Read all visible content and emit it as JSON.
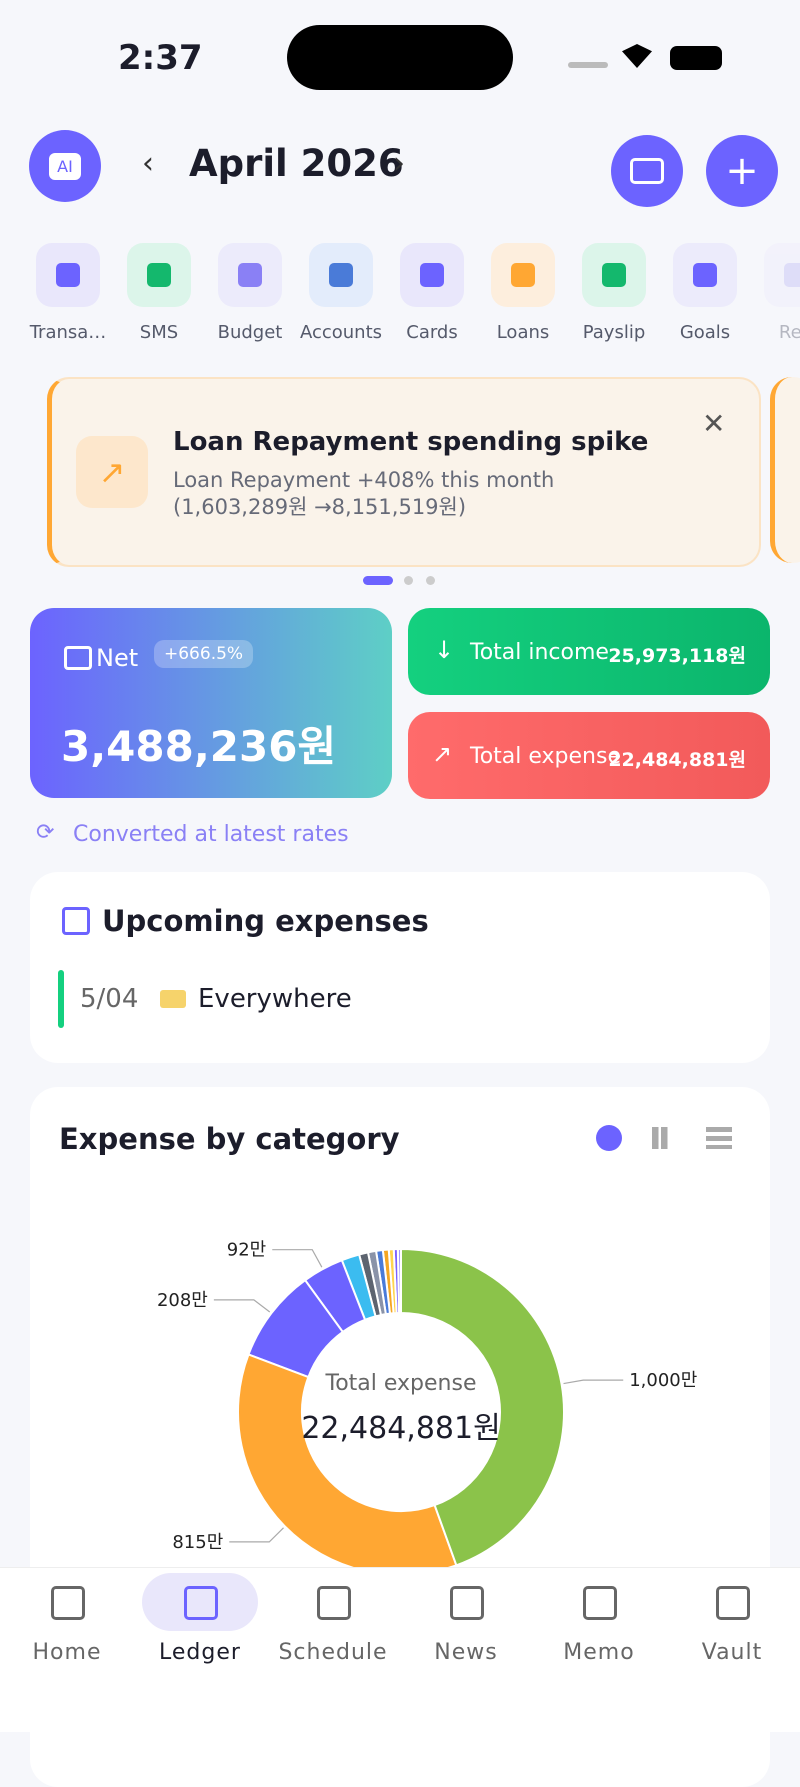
{
  "status_bar": {
    "time": "2:37"
  },
  "header": {
    "ai_label": "AI",
    "month": "April 2026"
  },
  "shortcuts": [
    "Transa…",
    "SMS",
    "Budget",
    "Accounts",
    "Cards",
    "Loans",
    "Payslip",
    "Goals",
    "Rep"
  ],
  "alert": {
    "title": "Loan Repayment spending spike",
    "message": "Loan Repayment +408% this month (1,603,289원 →8,151,519원)"
  },
  "summary": {
    "net_label": "Net",
    "net_change": "+666.5%",
    "net_amount": "3,488,236원",
    "income_label": "Total income",
    "income_amount": "25,973,118원",
    "expense_label": "Total expense",
    "expense_amount": "22,484,881원",
    "note": "Converted at latest rates"
  },
  "upcoming": {
    "title": "Upcoming expenses",
    "items": [
      {
        "date": "5/04",
        "name": "Everywhere"
      }
    ]
  },
  "chart_data": {
    "type": "donut",
    "title": "Expense by category",
    "center_label": "Total expense",
    "center_value": "22,484,881원",
    "values": [
      10000000,
      8150000,
      2080000,
      920000,
      400000,
      200000,
      180000,
      150000,
      130000,
      110000,
      90000,
      70000
    ],
    "value_labels": [
      "1,000만",
      "815만",
      "208만",
      "92만",
      null,
      null,
      null,
      null,
      null,
      null,
      null,
      null
    ],
    "colors": [
      "#8bc34a",
      "#ffa733",
      "#6c63ff",
      "#6c63ff",
      "#3bbcf0",
      "#5d6470",
      "#8a93a8",
      "#4a7bd8",
      "#f5a623",
      "#ffd54f",
      "#7b61ff",
      "#a29bfe"
    ]
  },
  "nav": [
    "Home",
    "Ledger",
    "Schedule",
    "News",
    "Memo",
    "Vault"
  ]
}
